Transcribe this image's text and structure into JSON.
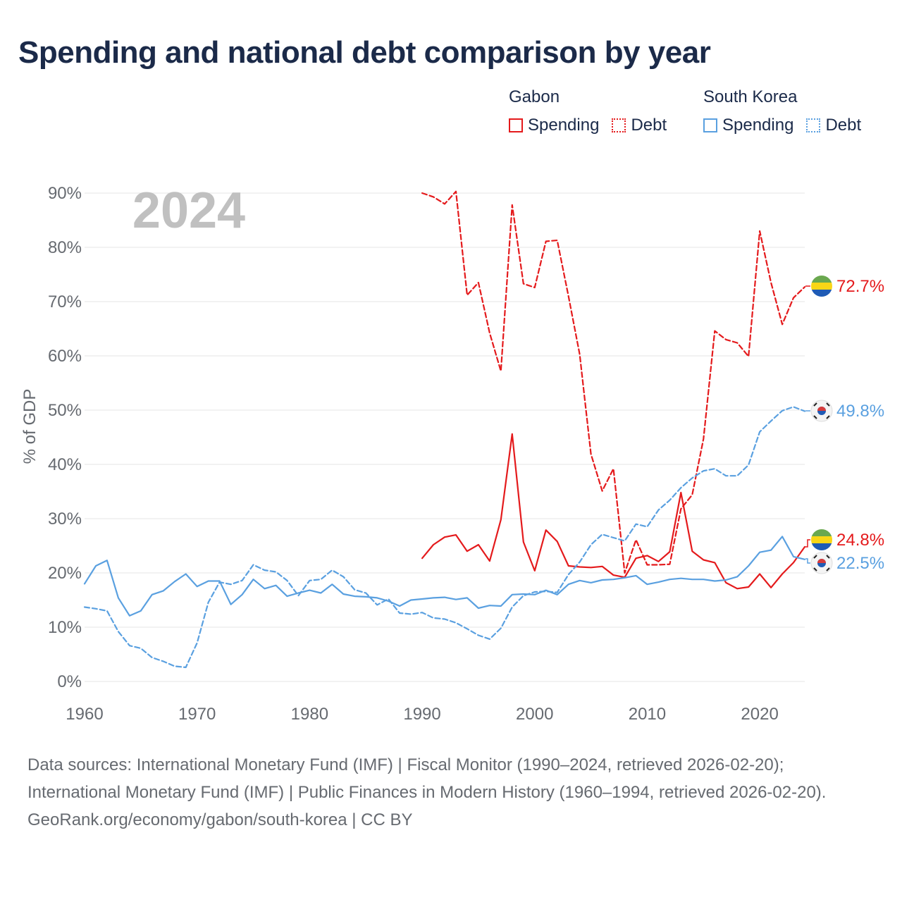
{
  "title": "Spending and national debt comparison by year",
  "legend": {
    "groups": [
      {
        "name": "Gabon",
        "color": "#e41a1c",
        "items": [
          {
            "label": "Spending",
            "style": "solid"
          },
          {
            "label": "Debt",
            "style": "dotted"
          }
        ]
      },
      {
        "name": "South Korea",
        "color": "#5aa0e0",
        "items": [
          {
            "label": "Spending",
            "style": "solid"
          },
          {
            "label": "Debt",
            "style": "dotted"
          }
        ]
      }
    ]
  },
  "year_label": "2024",
  "end_labels": {
    "gabon_debt": "72.7%",
    "korea_debt": "49.8%",
    "gabon_spending": "24.8%",
    "korea_spending": "22.5%"
  },
  "colors": {
    "gabon": "#e41a1c",
    "korea": "#5aa0e0",
    "title": "#1b2a49",
    "axis_text": "#666a70",
    "year": "#c0c0c0"
  },
  "footer": {
    "sources": "Data sources: International Monetary Fund (IMF) | Fiscal Monitor (1990–2024, retrieved 2026-02-20); International Monetary Fund (IMF) | Public Finances in Modern History (1960–1994, retrieved 2026-02-20).",
    "credit": "GeoRank.org/economy/gabon/south-korea | CC BY"
  },
  "chart_data": {
    "type": "line",
    "title": "Spending and national debt comparison by year",
    "xlabel": "",
    "ylabel": "% of GDP",
    "xlim": [
      1960,
      2024
    ],
    "ylim": [
      0,
      90
    ],
    "xticks": [
      1960,
      1970,
      1980,
      1990,
      2000,
      2010,
      2020
    ],
    "yticks": [
      0,
      10,
      20,
      30,
      40,
      50,
      60,
      70,
      80,
      90
    ],
    "ytick_labels": [
      "0%",
      "10%",
      "20%",
      "30%",
      "40%",
      "50%",
      "60%",
      "70%",
      "80%",
      "90%"
    ],
    "grid": true,
    "legend_position": "top-right",
    "series": [
      {
        "name": "Gabon Spending",
        "country": "Gabon",
        "indicator": "Spending",
        "style": "solid",
        "color": "#e41a1c",
        "x": [
          1990,
          1991,
          1992,
          1993,
          1994,
          1995,
          1996,
          1997,
          1998,
          1999,
          2000,
          2001,
          2002,
          2003,
          2004,
          2005,
          2006,
          2007,
          2008,
          2009,
          2010,
          2011,
          2012,
          2013,
          2014,
          2015,
          2016,
          2017,
          2018,
          2019,
          2020,
          2021,
          2022,
          2023,
          2024
        ],
        "y": [
          22.7,
          25.2,
          26.6,
          27.0,
          24.0,
          25.2,
          22.2,
          29.8,
          45.6,
          25.7,
          20.4,
          27.9,
          25.8,
          21.3,
          21.1,
          21.0,
          21.2,
          19.6,
          19.2,
          22.7,
          23.2,
          22.1,
          23.9,
          34.8,
          24.0,
          22.4,
          21.9,
          18.2,
          17.1,
          17.4,
          19.8,
          17.3,
          19.8,
          21.9,
          24.8
        ]
      },
      {
        "name": "Gabon Debt",
        "country": "Gabon",
        "indicator": "Debt",
        "style": "dashed",
        "color": "#e41a1c",
        "x": [
          1990,
          1991,
          1992,
          1993,
          1994,
          1995,
          1996,
          1997,
          1998,
          1999,
          2000,
          2001,
          2002,
          2003,
          2004,
          2005,
          2006,
          2007,
          2008,
          2009,
          2010,
          2011,
          2012,
          2013,
          2014,
          2015,
          2016,
          2017,
          2018,
          2019,
          2020,
          2021,
          2022,
          2023,
          2024
        ],
        "y": [
          90.0,
          89.3,
          88.0,
          90.3,
          71.2,
          73.5,
          64.2,
          57.2,
          87.8,
          73.3,
          72.6,
          81.1,
          81.3,
          71.0,
          60.3,
          41.9,
          35.1,
          39.2,
          20.0,
          26.1,
          21.5,
          21.5,
          21.6,
          31.8,
          34.4,
          44.7,
          64.6,
          63.0,
          62.4,
          59.9,
          83.0,
          73.5,
          65.8,
          70.7,
          72.7
        ]
      },
      {
        "name": "South Korea Spending",
        "country": "South Korea",
        "indicator": "Spending",
        "style": "solid",
        "color": "#5aa0e0",
        "x": [
          1960,
          1961,
          1962,
          1963,
          1964,
          1965,
          1966,
          1967,
          1968,
          1969,
          1970,
          1971,
          1972,
          1973,
          1974,
          1975,
          1976,
          1977,
          1978,
          1979,
          1980,
          1981,
          1982,
          1983,
          1984,
          1985,
          1986,
          1987,
          1988,
          1989,
          1990,
          1991,
          1992,
          1993,
          1994,
          1995,
          1996,
          1997,
          1998,
          1999,
          2000,
          2001,
          2002,
          2003,
          2004,
          2005,
          2006,
          2007,
          2008,
          2009,
          2010,
          2011,
          2012,
          2013,
          2014,
          2015,
          2016,
          2017,
          2018,
          2019,
          2020,
          2021,
          2022,
          2023,
          2024
        ],
        "y": [
          18.0,
          21.3,
          22.3,
          15.4,
          12.1,
          13.0,
          16.0,
          16.7,
          18.4,
          19.8,
          17.5,
          18.5,
          18.5,
          14.2,
          16.0,
          18.8,
          17.1,
          17.7,
          15.7,
          16.3,
          16.8,
          16.3,
          17.9,
          16.1,
          15.7,
          15.6,
          15.4,
          14.8,
          13.9,
          15.0,
          15.2,
          15.4,
          15.5,
          15.1,
          15.4,
          13.5,
          14.0,
          13.9,
          16.0,
          16.1,
          16.0,
          16.8,
          16.0,
          17.9,
          18.6,
          18.2,
          18.7,
          18.8,
          19.1,
          19.5,
          17.9,
          18.3,
          18.8,
          19.0,
          18.8,
          18.8,
          18.5,
          18.7,
          19.3,
          21.3,
          23.8,
          24.2,
          26.7,
          23.0,
          22.5
        ]
      },
      {
        "name": "South Korea Debt",
        "country": "South Korea",
        "indicator": "Debt",
        "style": "dashed",
        "color": "#5aa0e0",
        "x": [
          1960,
          1961,
          1962,
          1963,
          1964,
          1965,
          1966,
          1967,
          1968,
          1969,
          1970,
          1971,
          1972,
          1973,
          1974,
          1975,
          1976,
          1977,
          1978,
          1979,
          1980,
          1981,
          1982,
          1983,
          1984,
          1985,
          1986,
          1987,
          1988,
          1989,
          1990,
          1991,
          1992,
          1993,
          1994,
          1995,
          1996,
          1997,
          1998,
          1999,
          2000,
          2001,
          2002,
          2003,
          2004,
          2005,
          2006,
          2007,
          2008,
          2009,
          2010,
          2011,
          2012,
          2013,
          2014,
          2015,
          2016,
          2017,
          2018,
          2019,
          2020,
          2021,
          2022,
          2023,
          2024
        ],
        "y": [
          13.7,
          13.4,
          13.0,
          9.2,
          6.6,
          6.1,
          4.4,
          3.7,
          2.8,
          2.6,
          7.1,
          14.6,
          18.3,
          17.9,
          18.6,
          21.5,
          20.5,
          20.2,
          18.6,
          15.8,
          18.6,
          18.8,
          20.5,
          19.3,
          16.9,
          16.3,
          14.1,
          15.2,
          12.6,
          12.4,
          12.7,
          11.7,
          11.5,
          10.8,
          9.7,
          8.5,
          7.8,
          9.8,
          13.7,
          15.8,
          16.5,
          16.6,
          16.4,
          19.7,
          22.0,
          25.2,
          27.1,
          26.5,
          25.9,
          29.0,
          28.5,
          31.6,
          33.4,
          35.7,
          37.5,
          38.8,
          39.2,
          37.9,
          37.9,
          39.9,
          46.0,
          48.0,
          49.9,
          50.6,
          49.8
        ]
      }
    ]
  }
}
